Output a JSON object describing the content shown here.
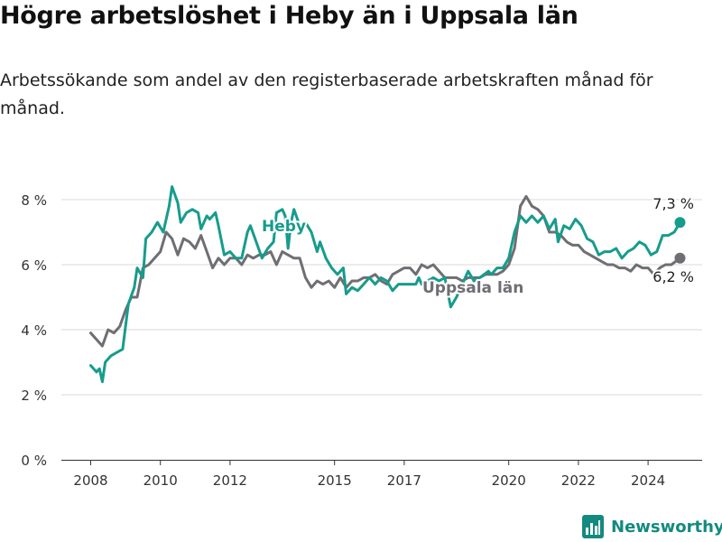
{
  "title": "Högre arbetslöshet i Heby än i Uppsala län",
  "subtitle": "Arbetssökande som andel av den registerbaserade arbetskraften månad för månad.",
  "brand": "Newsworthy",
  "colors": {
    "heby": "#169c8c",
    "uppsala": "#6e6e73",
    "grid": "#d9d9d9",
    "brand": "#138a7f"
  },
  "chart_data": {
    "type": "line",
    "title": "Högre arbetslöshet i Heby än i Uppsala län",
    "subtitle": "Arbetssökande som andel av den registerbaserade arbetskraften månad för månad.",
    "xlabel": "",
    "ylabel": "",
    "x_ticks": [
      "2008",
      "2010",
      "2012",
      "2015",
      "2017",
      "2020",
      "2022",
      "2024"
    ],
    "y_ticks": [
      "0 %",
      "2 %",
      "4 %",
      "6 %",
      "8 %"
    ],
    "ylim": [
      0,
      8.5
    ],
    "xlim": [
      "2007-10",
      "2025-12"
    ],
    "grid": "horizontal",
    "legend": "inline labels",
    "series": [
      {
        "name": "Heby",
        "end_label": "7,3 %",
        "points": [
          [
            "2008-01",
            2.9
          ],
          [
            "2008-03",
            2.7
          ],
          [
            "2008-04",
            2.8
          ],
          [
            "2008-05",
            2.4
          ],
          [
            "2008-06",
            3.0
          ],
          [
            "2008-08",
            3.2
          ],
          [
            "2008-10",
            3.3
          ],
          [
            "2008-12",
            3.4
          ],
          [
            "2009-02",
            4.8
          ],
          [
            "2009-04",
            5.3
          ],
          [
            "2009-05",
            5.9
          ],
          [
            "2009-07",
            5.6
          ],
          [
            "2009-08",
            6.8
          ],
          [
            "2009-10",
            7.0
          ],
          [
            "2009-12",
            7.3
          ],
          [
            "2010-02",
            7.0
          ],
          [
            "2010-04",
            7.8
          ],
          [
            "2010-05",
            8.4
          ],
          [
            "2010-07",
            7.9
          ],
          [
            "2010-08",
            7.3
          ],
          [
            "2010-10",
            7.6
          ],
          [
            "2010-12",
            7.7
          ],
          [
            "2011-02",
            7.6
          ],
          [
            "2011-03",
            7.1
          ],
          [
            "2011-05",
            7.5
          ],
          [
            "2011-06",
            7.4
          ],
          [
            "2011-08",
            7.6
          ],
          [
            "2011-09",
            7.2
          ],
          [
            "2011-11",
            6.3
          ],
          [
            "2012-01",
            6.4
          ],
          [
            "2012-03",
            6.2
          ],
          [
            "2012-05",
            6.2
          ],
          [
            "2012-07",
            7.0
          ],
          [
            "2012-08",
            7.2
          ],
          [
            "2012-10",
            6.7
          ],
          [
            "2012-12",
            6.2
          ],
          [
            "2013-02",
            6.5
          ],
          [
            "2013-04",
            6.7
          ],
          [
            "2013-05",
            7.6
          ],
          [
            "2013-07",
            7.7
          ],
          [
            "2013-08",
            7.5
          ],
          [
            "2013-09",
            6.5
          ],
          [
            "2013-10",
            7.3
          ],
          [
            "2013-11",
            7.7
          ],
          [
            "2014-01",
            7.2
          ],
          [
            "2014-03",
            7.3
          ],
          [
            "2014-05",
            7.0
          ],
          [
            "2014-07",
            6.4
          ],
          [
            "2014-08",
            6.7
          ],
          [
            "2014-10",
            6.2
          ],
          [
            "2014-12",
            5.9
          ],
          [
            "2015-02",
            5.7
          ],
          [
            "2015-04",
            5.9
          ],
          [
            "2015-05",
            5.1
          ],
          [
            "2015-07",
            5.3
          ],
          [
            "2015-09",
            5.2
          ],
          [
            "2015-11",
            5.4
          ],
          [
            "2016-01",
            5.6
          ],
          [
            "2016-03",
            5.4
          ],
          [
            "2016-05",
            5.6
          ],
          [
            "2016-07",
            5.5
          ],
          [
            "2016-09",
            5.2
          ],
          [
            "2016-11",
            5.4
          ],
          [
            "2017-01",
            5.4
          ],
          [
            "2017-03",
            5.4
          ],
          [
            "2017-05",
            5.4
          ],
          [
            "2017-06",
            5.6
          ],
          [
            "2017-07",
            5.4
          ],
          [
            "2017-09",
            5.5
          ],
          [
            "2017-11",
            5.6
          ],
          [
            "2018-01",
            5.5
          ],
          [
            "2018-03",
            5.6
          ],
          [
            "2018-05",
            4.7
          ],
          [
            "2018-07",
            5.0
          ],
          [
            "2018-09",
            5.4
          ],
          [
            "2018-11",
            5.8
          ],
          [
            "2019-01",
            5.5
          ],
          [
            "2019-03",
            5.6
          ],
          [
            "2019-06",
            5.8
          ],
          [
            "2019-07",
            5.7
          ],
          [
            "2019-09",
            5.9
          ],
          [
            "2019-11",
            5.9
          ],
          [
            "2020-01",
            6.2
          ],
          [
            "2020-03",
            7.0
          ],
          [
            "2020-05",
            7.5
          ],
          [
            "2020-07",
            7.3
          ],
          [
            "2020-09",
            7.5
          ],
          [
            "2020-11",
            7.3
          ],
          [
            "2021-01",
            7.5
          ],
          [
            "2021-03",
            7.1
          ],
          [
            "2021-05",
            7.4
          ],
          [
            "2021-06",
            6.7
          ],
          [
            "2021-08",
            7.2
          ],
          [
            "2021-10",
            7.1
          ],
          [
            "2021-12",
            7.4
          ],
          [
            "2022-02",
            7.2
          ],
          [
            "2022-04",
            6.8
          ],
          [
            "2022-06",
            6.7
          ],
          [
            "2022-08",
            6.3
          ],
          [
            "2022-10",
            6.4
          ],
          [
            "2022-12",
            6.4
          ],
          [
            "2023-02",
            6.5
          ],
          [
            "2023-04",
            6.2
          ],
          [
            "2023-06",
            6.4
          ],
          [
            "2023-08",
            6.5
          ],
          [
            "2023-10",
            6.7
          ],
          [
            "2023-12",
            6.6
          ],
          [
            "2024-02",
            6.3
          ],
          [
            "2024-04",
            6.4
          ],
          [
            "2024-06",
            6.9
          ],
          [
            "2024-08",
            6.9
          ],
          [
            "2024-10",
            7.0
          ],
          [
            "2024-12",
            7.3
          ]
        ]
      },
      {
        "name": "Uppsala län",
        "end_label": "6,2 %",
        "points": [
          [
            "2008-01",
            3.9
          ],
          [
            "2008-03",
            3.7
          ],
          [
            "2008-05",
            3.5
          ],
          [
            "2008-07",
            4.0
          ],
          [
            "2008-09",
            3.9
          ],
          [
            "2008-11",
            4.1
          ],
          [
            "2009-01",
            4.6
          ],
          [
            "2009-03",
            5.0
          ],
          [
            "2009-05",
            5.0
          ],
          [
            "2009-07",
            5.9
          ],
          [
            "2009-09",
            6.0
          ],
          [
            "2009-11",
            6.2
          ],
          [
            "2010-01",
            6.4
          ],
          [
            "2010-03",
            7.0
          ],
          [
            "2010-05",
            6.8
          ],
          [
            "2010-07",
            6.3
          ],
          [
            "2010-09",
            6.8
          ],
          [
            "2010-11",
            6.7
          ],
          [
            "2011-01",
            6.5
          ],
          [
            "2011-03",
            6.9
          ],
          [
            "2011-05",
            6.4
          ],
          [
            "2011-07",
            5.9
          ],
          [
            "2011-09",
            6.2
          ],
          [
            "2011-11",
            6.0
          ],
          [
            "2012-01",
            6.2
          ],
          [
            "2012-03",
            6.2
          ],
          [
            "2012-05",
            6.0
          ],
          [
            "2012-07",
            6.3
          ],
          [
            "2012-09",
            6.2
          ],
          [
            "2012-11",
            6.3
          ],
          [
            "2013-01",
            6.3
          ],
          [
            "2013-03",
            6.4
          ],
          [
            "2013-05",
            6.0
          ],
          [
            "2013-07",
            6.4
          ],
          [
            "2013-09",
            6.3
          ],
          [
            "2013-11",
            6.2
          ],
          [
            "2014-01",
            6.2
          ],
          [
            "2014-03",
            5.6
          ],
          [
            "2014-05",
            5.3
          ],
          [
            "2014-07",
            5.5
          ],
          [
            "2014-09",
            5.4
          ],
          [
            "2014-11",
            5.5
          ],
          [
            "2015-01",
            5.3
          ],
          [
            "2015-03",
            5.6
          ],
          [
            "2015-05",
            5.3
          ],
          [
            "2015-07",
            5.5
          ],
          [
            "2015-09",
            5.5
          ],
          [
            "2015-11",
            5.6
          ],
          [
            "2016-01",
            5.6
          ],
          [
            "2016-03",
            5.7
          ],
          [
            "2016-05",
            5.5
          ],
          [
            "2016-07",
            5.4
          ],
          [
            "2016-09",
            5.7
          ],
          [
            "2016-11",
            5.8
          ],
          [
            "2017-01",
            5.9
          ],
          [
            "2017-03",
            5.9
          ],
          [
            "2017-05",
            5.7
          ],
          [
            "2017-07",
            6.0
          ],
          [
            "2017-09",
            5.9
          ],
          [
            "2017-11",
            6.0
          ],
          [
            "2018-01",
            5.8
          ],
          [
            "2018-03",
            5.6
          ],
          [
            "2018-05",
            5.6
          ],
          [
            "2018-07",
            5.6
          ],
          [
            "2018-09",
            5.5
          ],
          [
            "2018-11",
            5.6
          ],
          [
            "2019-01",
            5.6
          ],
          [
            "2019-03",
            5.6
          ],
          [
            "2019-05",
            5.7
          ],
          [
            "2019-07",
            5.7
          ],
          [
            "2019-09",
            5.7
          ],
          [
            "2019-11",
            5.8
          ],
          [
            "2020-01",
            6.0
          ],
          [
            "2020-03",
            6.5
          ],
          [
            "2020-05",
            7.8
          ],
          [
            "2020-07",
            8.1
          ],
          [
            "2020-09",
            7.8
          ],
          [
            "2020-11",
            7.7
          ],
          [
            "2021-01",
            7.5
          ],
          [
            "2021-03",
            7.0
          ],
          [
            "2021-05",
            7.0
          ],
          [
            "2021-07",
            6.9
          ],
          [
            "2021-09",
            6.7
          ],
          [
            "2021-11",
            6.6
          ],
          [
            "2022-01",
            6.6
          ],
          [
            "2022-03",
            6.4
          ],
          [
            "2022-05",
            6.3
          ],
          [
            "2022-07",
            6.2
          ],
          [
            "2022-09",
            6.1
          ],
          [
            "2022-11",
            6.0
          ],
          [
            "2023-01",
            6.0
          ],
          [
            "2023-03",
            5.9
          ],
          [
            "2023-05",
            5.9
          ],
          [
            "2023-07",
            5.8
          ],
          [
            "2023-09",
            6.0
          ],
          [
            "2023-11",
            5.9
          ],
          [
            "2024-01",
            5.9
          ],
          [
            "2024-03",
            5.7
          ],
          [
            "2024-05",
            5.9
          ],
          [
            "2024-07",
            6.0
          ],
          [
            "2024-09",
            6.0
          ],
          [
            "2024-12",
            6.2
          ]
        ]
      }
    ]
  }
}
